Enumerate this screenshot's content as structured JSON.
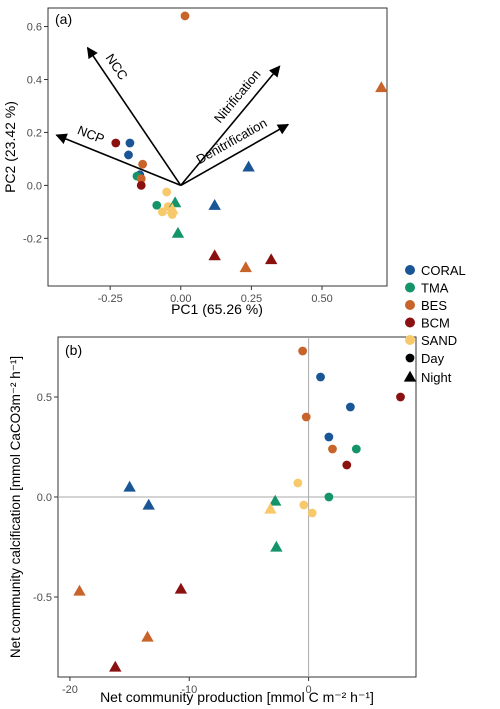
{
  "colors": {
    "CORAL": "#1a5596",
    "TMA": "#14946a",
    "BES": "#c8642a",
    "BCM": "#8b1010",
    "SAND": "#f8c96a",
    "arrow": "#000000",
    "frame": "#333333",
    "refline": "#aaaaaa"
  },
  "legend": {
    "groups": [
      "CORAL",
      "TMA",
      "BES",
      "BCM",
      "SAND"
    ],
    "shape_entries": [
      {
        "label": "Day",
        "shape": "circle"
      },
      {
        "label": "Night",
        "shape": "triangle"
      }
    ]
  },
  "chart_data": [
    {
      "type": "scatter",
      "panel": "(a)",
      "xlabel": "PC1 (65.26 %)",
      "ylabel": "PC2 (23.42 %)",
      "xlim": [
        -0.47,
        0.73
      ],
      "ylim": [
        -0.38,
        0.67
      ],
      "xticks": [
        -0.25,
        0.0,
        0.25,
        0.5
      ],
      "xtick_labels": [
        "-0.25",
        "0.00",
        "0.25",
        "0.50"
      ],
      "yticks": [
        -0.2,
        0.0,
        0.2,
        0.4,
        0.6
      ],
      "ytick_labels": [
        "-0.2",
        "0.0",
        "0.2",
        "0.4",
        "0.6"
      ],
      "grid": false,
      "loadings": [
        {
          "label": "NCC",
          "x": -0.33,
          "y": 0.52
        },
        {
          "label": "NCP",
          "x": -0.44,
          "y": 0.19
        },
        {
          "label": "Nitrification",
          "x": 0.35,
          "y": 0.45
        },
        {
          "label": "Denitrification",
          "x": 0.38,
          "y": 0.23
        }
      ],
      "points": [
        {
          "group": "CORAL",
          "shape": "circle",
          "x": -0.18,
          "y": 0.16
        },
        {
          "group": "CORAL",
          "shape": "circle",
          "x": -0.185,
          "y": 0.115
        },
        {
          "group": "CORAL",
          "shape": "circle",
          "x": -0.145,
          "y": 0.04
        },
        {
          "group": "TMA",
          "shape": "circle",
          "x": -0.155,
          "y": 0.035
        },
        {
          "group": "BES",
          "shape": "circle",
          "x": -0.135,
          "y": 0.08
        },
        {
          "group": "BES",
          "shape": "circle",
          "x": -0.14,
          "y": 0.025
        },
        {
          "group": "BCM",
          "shape": "circle",
          "x": -0.23,
          "y": 0.16
        },
        {
          "group": "BCM",
          "shape": "circle",
          "x": -0.14,
          "y": 0.0
        },
        {
          "group": "TMA",
          "shape": "circle",
          "x": -0.085,
          "y": -0.075
        },
        {
          "group": "SAND",
          "shape": "circle",
          "x": -0.05,
          "y": -0.025
        },
        {
          "group": "SAND",
          "shape": "circle",
          "x": -0.045,
          "y": -0.08
        },
        {
          "group": "SAND",
          "shape": "circle",
          "x": -0.065,
          "y": -0.1
        },
        {
          "group": "SAND",
          "shape": "circle",
          "x": -0.03,
          "y": -0.11
        },
        {
          "group": "BES",
          "shape": "circle",
          "x": 0.015,
          "y": 0.64
        },
        {
          "group": "BES",
          "shape": "triangle",
          "x": 0.71,
          "y": 0.37
        },
        {
          "group": "CORAL",
          "shape": "triangle",
          "x": 0.24,
          "y": 0.07
        },
        {
          "group": "CORAL",
          "shape": "triangle",
          "x": 0.12,
          "y": -0.075
        },
        {
          "group": "TMA",
          "shape": "triangle",
          "x": -0.02,
          "y": -0.065
        },
        {
          "group": "TMA",
          "shape": "triangle",
          "x": -0.01,
          "y": -0.18
        },
        {
          "group": "SAND",
          "shape": "triangle",
          "x": -0.03,
          "y": -0.09
        },
        {
          "group": "BCM",
          "shape": "triangle",
          "x": 0.12,
          "y": -0.265
        },
        {
          "group": "BES",
          "shape": "triangle",
          "x": 0.23,
          "y": -0.31
        },
        {
          "group": "BCM",
          "shape": "triangle",
          "x": 0.32,
          "y": -0.28
        }
      ]
    },
    {
      "type": "scatter",
      "panel": "(b)",
      "xlabel": "Net community production [mmol C m⁻² h⁻¹]",
      "ylabel": "Net community calcification [mmol CaCO3m⁻² h⁻¹]",
      "xlim": [
        -21,
        9
      ],
      "ylim": [
        -0.9,
        0.8
      ],
      "xticks": [
        -20,
        -10,
        0
      ],
      "xtick_labels": [
        "-20",
        "-10",
        "0"
      ],
      "yticks": [
        -0.5,
        0.0,
        0.5
      ],
      "ytick_labels": [
        "-0.5",
        "0.0",
        "0.5"
      ],
      "grid": false,
      "reference_lines": {
        "x": 0,
        "y": 0
      },
      "points": [
        {
          "group": "BES",
          "shape": "circle",
          "x": -0.5,
          "y": 0.73
        },
        {
          "group": "CORAL",
          "shape": "circle",
          "x": 1.0,
          "y": 0.6
        },
        {
          "group": "BCM",
          "shape": "circle",
          "x": 7.7,
          "y": 0.5
        },
        {
          "group": "CORAL",
          "shape": "circle",
          "x": 3.5,
          "y": 0.45
        },
        {
          "group": "BES",
          "shape": "circle",
          "x": -0.2,
          "y": 0.4
        },
        {
          "group": "CORAL",
          "shape": "circle",
          "x": 1.7,
          "y": 0.3
        },
        {
          "group": "BES",
          "shape": "circle",
          "x": 2.0,
          "y": 0.24
        },
        {
          "group": "TMA",
          "shape": "circle",
          "x": 4.0,
          "y": 0.24
        },
        {
          "group": "BCM",
          "shape": "circle",
          "x": 3.2,
          "y": 0.16
        },
        {
          "group": "SAND",
          "shape": "circle",
          "x": -0.9,
          "y": 0.07
        },
        {
          "group": "TMA",
          "shape": "circle",
          "x": 1.7,
          "y": 0.0
        },
        {
          "group": "SAND",
          "shape": "circle",
          "x": -0.4,
          "y": -0.04
        },
        {
          "group": "SAND",
          "shape": "circle",
          "x": 0.3,
          "y": -0.08
        },
        {
          "group": "CORAL",
          "shape": "triangle",
          "x": -15.0,
          "y": 0.05
        },
        {
          "group": "CORAL",
          "shape": "triangle",
          "x": -13.4,
          "y": -0.04
        },
        {
          "group": "TMA",
          "shape": "triangle",
          "x": -2.8,
          "y": -0.02
        },
        {
          "group": "SAND",
          "shape": "triangle",
          "x": -3.2,
          "y": -0.06
        },
        {
          "group": "TMA",
          "shape": "triangle",
          "x": -2.7,
          "y": -0.25
        },
        {
          "group": "BES",
          "shape": "triangle",
          "x": -19.2,
          "y": -0.47
        },
        {
          "group": "BCM",
          "shape": "triangle",
          "x": -10.7,
          "y": -0.46
        },
        {
          "group": "BES",
          "shape": "triangle",
          "x": -13.5,
          "y": -0.7
        },
        {
          "group": "BCM",
          "shape": "triangle",
          "x": -16.2,
          "y": -0.85
        }
      ]
    }
  ]
}
